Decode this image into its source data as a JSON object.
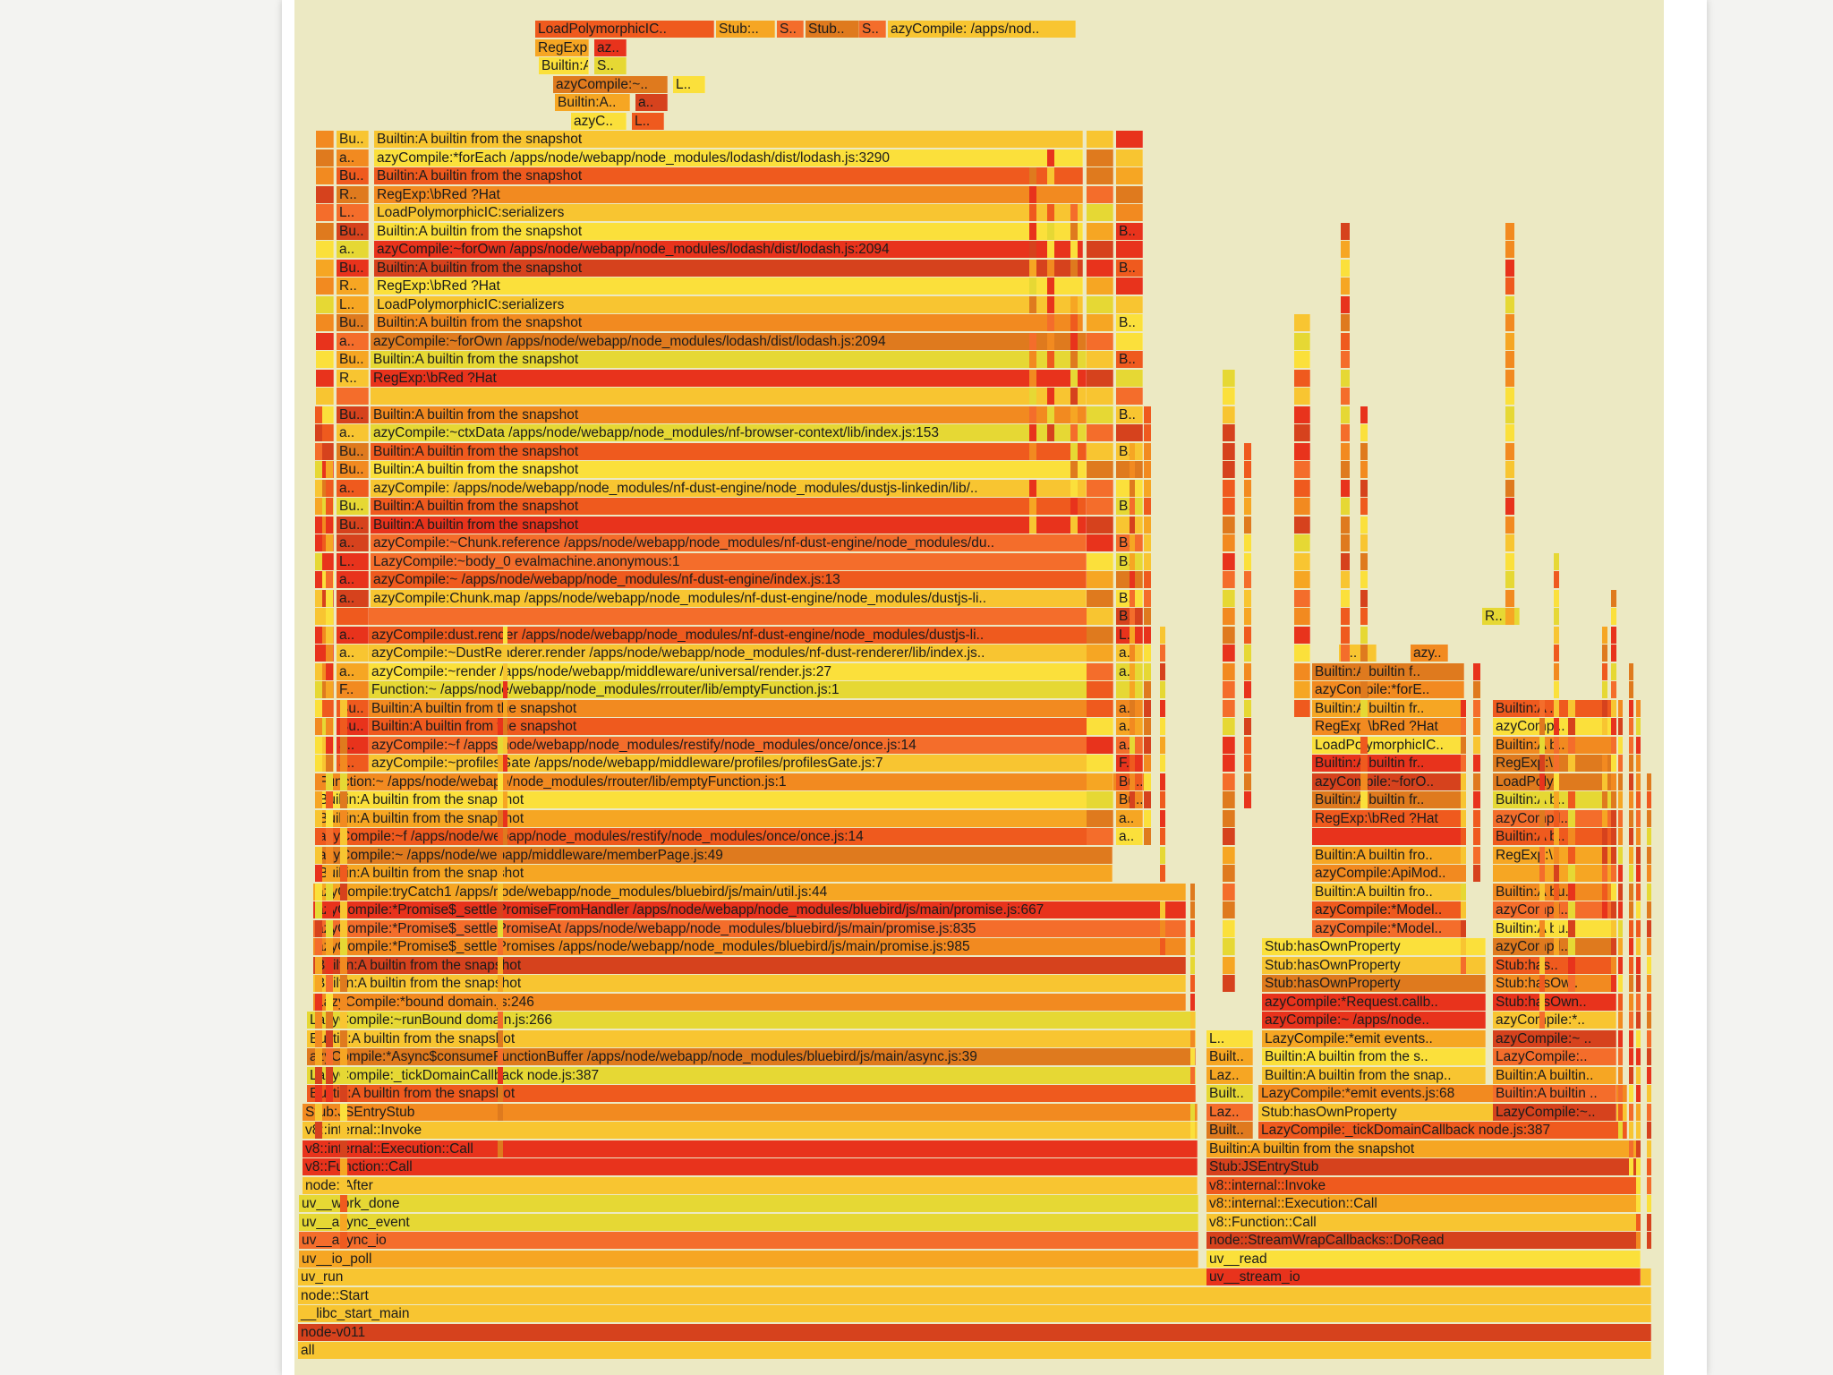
{
  "colors": {
    "background": "#ece9c3",
    "palette": [
      "#e8331c",
      "#ef5a1e",
      "#f28a20",
      "#f6a623",
      "#f8c531",
      "#fbe03b",
      "#e6d834",
      "#df7a1e",
      "#d6421d",
      "#f46d2b"
    ]
  },
  "flamegraph": {
    "left_stack": [
      {
        "label": "azyC..",
        "row": 1
      },
      {
        "label": "L..",
        "row": 1
      },
      {
        "label": "Builtin:A..",
        "row": 2
      },
      {
        "label": "a..",
        "row": 2
      },
      {
        "label": "azyCompile:~..",
        "row": 3
      },
      {
        "label": "L..",
        "row": 3
      },
      {
        "label": "Builtin:A builtin ..",
        "row": 4
      },
      {
        "label": "S..",
        "row": 4
      },
      {
        "label": "RegExp:\\bRed ?Hat",
        "row": 5
      },
      {
        "label": "az..",
        "row": 5
      },
      {
        "label": "LoadPolymorphicIC..",
        "row": 6
      },
      {
        "label": "Stub:..",
        "row": 6
      },
      {
        "label": "S..",
        "row": 6
      },
      {
        "label": "Stub..",
        "row": 6
      },
      {
        "label": "S..",
        "row": 6
      },
      {
        "label": "azyCompile: /apps/nod..",
        "row": 6
      }
    ],
    "main_frames": [
      "Builtin:A builtin from the snapshot",
      "azyCompile:*forEach /apps/node/webapp/node_modules/lodash/dist/lodash.js:3290",
      "Builtin:A builtin from the snapshot",
      "RegExp:\\bRed ?Hat",
      "LoadPolymorphicIC:serializers",
      "Builtin:A builtin from the snapshot",
      "azyCompile:~forOwn /apps/node/webapp/node_modules/lodash/dist/lodash.js:2094",
      "Builtin:A builtin from the snapshot",
      "RegExp:\\bRed ?Hat",
      "LoadPolymorphicIC:serializers",
      "Builtin:A builtin from the snapshot",
      "azyCompile:~forOwn /apps/node/webapp/node_modules/lodash/dist/lodash.js:2094",
      "Builtin:A builtin from the snapshot",
      "RegExp:\\bRed ?Hat",
      "",
      "Builtin:A builtin from the snapshot",
      "azyCompile:~ctxData /apps/node/webapp/node_modules/nf-browser-context/lib/index.js:153",
      "Builtin:A builtin from the snapshot",
      "Builtin:A builtin from the snapshot",
      "azyCompile: /apps/node/webapp/node_modules/nf-dust-engine/node_modules/dustjs-linkedin/lib/..",
      "Builtin:A builtin from the snapshot",
      "Builtin:A builtin from the snapshot",
      "azyCompile:~Chunk.reference /apps/node/webapp/node_modules/nf-dust-engine/node_modules/du..",
      "LazyCompile:~body_0 evalmachine.anonymous:1",
      "azyCompile:~ /apps/node/webapp/node_modules/nf-dust-engine/index.js:13",
      "azyCompile:Chunk.map /apps/node/webapp/node_modules/nf-dust-engine/node_modules/dustjs-li..",
      "",
      "azyCompile:dust.render /apps/node/webapp/node_modules/nf-dust-engine/node_modules/dustjs-li..",
      "azyCompile:~DustRenderer.render /apps/node/webapp/node_modules/nf-dust-renderer/lib/index.js..",
      "azyCompile:~render /apps/node/webapp/middleware/universal/render.js:27",
      "Function:~ /apps/node/webapp/node_modules/rrouter/lib/emptyFunction.js:1",
      "Builtin:A builtin from the snapshot",
      "Builtin:A builtin from the snapshot",
      "azyCompile:~f /apps/node/webapp/node_modules/restify/node_modules/once/once.js:14",
      "azyCompile:~profilesGate /apps/node/webapp/middleware/profiles/profilesGate.js:7",
      "Function:~ /apps/node/webapp/node_modules/rrouter/lib/emptyFunction.js:1",
      "Builtin:A builtin from the snapshot",
      "Builtin:A builtin from the snapshot",
      "azyCompile:~f /apps/node/webapp/node_modules/restify/node_modules/once/once.js:14",
      "azyCompile:~ /apps/node/webapp/middleware/memberPage.js:49",
      "Builtin:A builtin from the snapshot",
      "azyCompile:tryCatch1 /apps/node/webapp/node_modules/bluebird/js/main/util.js:44",
      "azyCompile:*Promise$_settlePromiseFromHandler /apps/node/webapp/node_modules/bluebird/js/main/promise.js:667",
      "azyCompile:*Promise$_settlePromiseAt /apps/node/webapp/node_modules/bluebird/js/main/promise.js:835",
      "azyCompile:*Promise$_settlePromises /apps/node/webapp/node_modules/bluebird/js/main/promise.js:985",
      "Builtin:A builtin from the snapshot",
      "Builtin:A builtin from the snapshot",
      "LazyCompile:*bound domain.js:246",
      "LazyCompile:~runBound domain.js:266",
      "Builtin:A builtin from the snapshot",
      "azyCompile:*Async$consumeFunctionBuffer /apps/node/webapp/node_modules/bluebird/js/main/async.js:39",
      "LazyCompile:_tickDomainCallback node.js:387",
      "Builtin:A builtin from the snapshot",
      "Stub:JSEntryStub",
      "v8::internal::Invoke",
      "v8::internal::Execution::Call",
      "v8::Function::Call",
      "node::After",
      "uv__work_done",
      "uv__async_event",
      "uv__async_io",
      "uv__io_poll",
      "uv_run",
      "node::Start",
      "__libc_start_main",
      "node-v011",
      "all"
    ],
    "left_column_labels": [
      "Bu..",
      "a..",
      "Bu..",
      "R..",
      "L..",
      "Bu..",
      "a..",
      "Bu..",
      "R..",
      "L..",
      "Bu..",
      "a..",
      "Bu..",
      "R..",
      "",
      "Bu..",
      "a..",
      "Bu..",
      "Bu..",
      "a..",
      "Bu..",
      "Bu..",
      "a..",
      "L..",
      "a..",
      "a..",
      "",
      "a..",
      "a..",
      "a..",
      "F..",
      "Bu..",
      "Bu..",
      "a..",
      "a.."
    ],
    "right_of_main_labels": [
      "",
      "",
      "",
      "",
      "",
      "B..",
      "",
      "B..",
      "",
      "",
      "B..",
      "",
      "B..",
      "",
      "",
      "B..",
      "",
      "B..",
      "",
      "",
      "B..",
      "",
      "B..",
      "B..",
      "",
      "B..",
      "B..",
      "L..",
      "a..",
      "a..",
      "",
      "a..",
      "a..",
      "a..",
      "F..",
      "Bu..",
      "Bu..",
      "a..",
      "a.."
    ],
    "right_stack": [
      "Builtin:A builtin from the snapshot",
      "Stub:JSEntryStub",
      "v8::internal::Invoke",
      "v8::internal::Execution::Call",
      "v8::Function::Call",
      "node::StreamWrapCallbacks::DoRead",
      "uv__read",
      "uv__stream_io"
    ],
    "right_mid": [
      "LazyCompile:_tickDomainCallback node.js:387",
      "Stub:hasOwnProperty",
      "LazyCompile:*emit events.js:68",
      "Builtin:A builtin from the snap..",
      "Builtin:A builtin from the s..",
      "LazyCompile:*emit events..",
      "azyCompile:~ /apps/node..",
      "azyCompile:*Request.callb..",
      "Stub:hasOwnProperty",
      "Stub:hasOwnProperty",
      "Stub:hasOwnProperty",
      "azyCompile:*Model..",
      "azyCompile:*Model..",
      "Builtin:A builtin fro..",
      "azyCompile:ApiMod..",
      "Builtin:A builtin fro..",
      "",
      "RegExp:\\bRed ?Hat",
      "Builtin:A builtin fr..",
      "azyCompile:~forO..",
      "Builtin:A builtin fr..",
      "LoadPolymorphicIC..",
      "RegExp:\\bRed ?Hat",
      "Builtin:A builtin fr..",
      "azyCompile:*forE..",
      "Builtin:A builtin f.."
    ],
    "right_mid_small": [
      "L..",
      "azy..",
      "R.."
    ],
    "far_right": [
      "LazyCompile:~..",
      "Builtin:A builtin ..",
      "Builtin:A builtin..",
      "LazyCompile:..",
      "azyCompile:~ ..",
      "azyCompile:*..",
      "Stub:hasOwn..",
      "Stub:hasOw..",
      "Stub:has..",
      "azyCompil..",
      "Builtin:A bu..",
      "azyCompil..",
      "Builtin:A bu..",
      "",
      "RegExp:\\..",
      "Builtin:A b..",
      "azyCompil..",
      "Builtin:A b..",
      "LoadPoly..",
      "RegExp:\\..",
      "Builtin:A b..",
      "azyCompi..",
      "Builtin:A .."
    ],
    "side_left_labels": [
      "Built..",
      "Laz..",
      "Built..",
      "Laz..",
      "Built..",
      "L.."
    ],
    "top_labels": [
      "az..",
      "S.."
    ]
  }
}
